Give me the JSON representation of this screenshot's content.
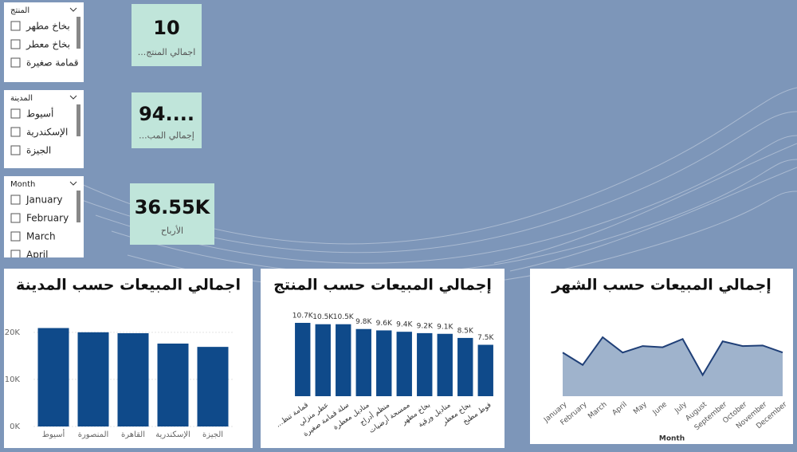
{
  "slicers": [
    {
      "header": "المنتج",
      "items": [
        "بخاخ مطهر",
        "بخاخ معطر",
        "قمامة صغيرة"
      ]
    },
    {
      "header": "المدينة",
      "items": [
        "أسيوط",
        "الإسكندرية",
        "الجيزة"
      ]
    },
    {
      "header": "Month",
      "items": [
        "January",
        "February",
        "March",
        "April"
      ]
    }
  ],
  "cards": [
    {
      "value": "10",
      "label": "...اجمالي المنتج"
    },
    {
      "value": "94....",
      "label": "...إجمالي المب"
    },
    {
      "value": "36.55K",
      "label": "الأرباح"
    }
  ],
  "chart_data": [
    {
      "type": "bar",
      "title": "اجمالي المبيعات حسب المدينة",
      "color": "#0f4a8a",
      "categories": [
        "أسيوط",
        "المنصورة",
        "القاهرة",
        "الإسكندرية",
        "الجيزة"
      ],
      "values": [
        20900,
        20000,
        19800,
        17600,
        16900
      ],
      "ylim": [
        0,
        22000
      ],
      "yticks": [
        {
          "value": 0,
          "label": "0K"
        },
        {
          "value": 10000,
          "label": "10K"
        },
        {
          "value": 20000,
          "label": "20K"
        }
      ],
      "grid": true
    },
    {
      "type": "bar",
      "title": "إجمالي المبيعات حسب المنتج",
      "color": "#0f4a8a",
      "categories": [
        "...قمامة تنظ",
        "عطر منزلي",
        "سلة قمامة صغيرة",
        "مناديل معطرة",
        "منظم أدراج",
        "ممسحة أرضيات",
        "بخاخ مطهر",
        "مناديل ورقية",
        "بخاخ معطر",
        "فوط مطبخ"
      ],
      "values": [
        10700,
        10500,
        10500,
        9800,
        9600,
        9400,
        9200,
        9100,
        8500,
        7500
      ],
      "value_labels": [
        "10.7K",
        "10.5K",
        "10.5K",
        "9.8K",
        "9.6K",
        "9.4K",
        "9.2K",
        "9.1K",
        "8.5K",
        "7.5K"
      ]
    },
    {
      "type": "line",
      "title": "إجمالي المبيعات حسب الشهر",
      "x_label": "Month",
      "color": "#1f3f77",
      "fill": "#9fb3cc",
      "categories": [
        "January",
        "February",
        "March",
        "April",
        "May",
        "June",
        "July",
        "August",
        "September",
        "October",
        "November",
        "December"
      ],
      "values": [
        7400,
        5300,
        10000,
        7400,
        8500,
        8300,
        9700,
        3600,
        9300,
        8500,
        8600,
        7400
      ]
    }
  ]
}
